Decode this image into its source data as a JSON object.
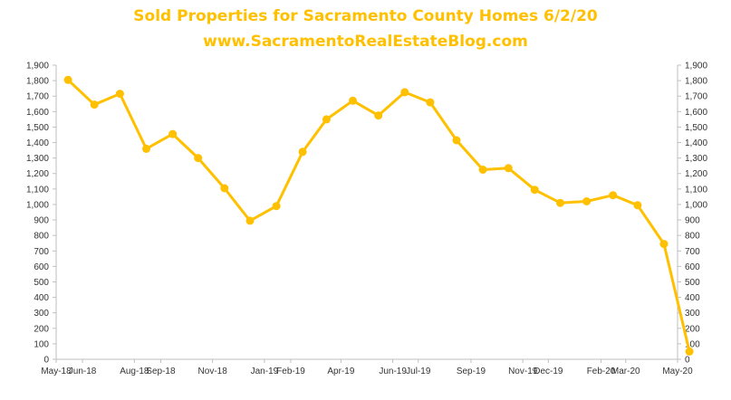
{
  "colors": {
    "accent": "#FFC000",
    "axis": "#bfbfbf",
    "text": "#333333"
  },
  "chart_data": {
    "type": "line",
    "title": "Sold Properties for Sacramento County Homes 6/2/20",
    "subtitle": "www.SacramentoRealEstateBlog.com",
    "xlabel": "",
    "ylabel": "",
    "ylim": [
      0,
      1900
    ],
    "ytick_step": 100,
    "grid": false,
    "legend": "none",
    "x_axis_labels": [
      "May-18",
      "Jun-18",
      "Aug-18",
      "Sep-18",
      "Nov-18",
      "Jan-19",
      "Feb-19",
      "Apr-19",
      "Jun-19",
      "Jul-19",
      "Sep-19",
      "Nov-19",
      "Dec-19",
      "Feb-20",
      "Mar-20",
      "May-20"
    ],
    "x_axis_label_dates": [
      "2018-05-01",
      "2018-06-01",
      "2018-08-01",
      "2018-09-01",
      "2018-11-01",
      "2019-01-01",
      "2019-02-01",
      "2019-04-01",
      "2019-06-01",
      "2019-07-01",
      "2019-09-01",
      "2019-11-01",
      "2019-12-01",
      "2020-02-01",
      "2020-03-01",
      "2020-05-01"
    ],
    "x_axis_range": [
      "2018-05-01",
      "2020-05-01"
    ],
    "y_ticks_left": [
      "0",
      "100",
      "200",
      "300",
      "400",
      "500",
      "600",
      "700",
      "800",
      "900",
      "1,000",
      "1,100",
      "1,200",
      "1,300",
      "1,400",
      "1,500",
      "1,600",
      "1,700",
      "1,800",
      "1,900"
    ],
    "y_ticks_right": [
      "0",
      "100",
      "200",
      "300",
      "400",
      "500",
      "600",
      "700",
      "800",
      "900",
      "1,000",
      "1,100",
      "1,200",
      "1,300",
      "1,400",
      "1,500",
      "1,600",
      "1,700",
      "1,800",
      "1,900"
    ],
    "series": [
      {
        "x": [
          "2018-05",
          "2018-06",
          "2018-07",
          "2018-08",
          "2018-09",
          "2018-10",
          "2018-11",
          "2018-12",
          "2019-01",
          "2019-02",
          "2019-03",
          "2019-04",
          "2019-05",
          "2019-06",
          "2019-07",
          "2019-08",
          "2019-09",
          "2019-10",
          "2019-11",
          "2019-12",
          "2020-01",
          "2020-02",
          "2020-03",
          "2020-04",
          "2020-05"
        ],
        "values": [
          1805,
          1645,
          1715,
          1360,
          1455,
          1300,
          1105,
          895,
          990,
          1340,
          1550,
          1670,
          1575,
          1725,
          1660,
          1415,
          1225,
          1235,
          1095,
          1010,
          1020,
          1060,
          995,
          745,
          50
        ]
      }
    ]
  }
}
